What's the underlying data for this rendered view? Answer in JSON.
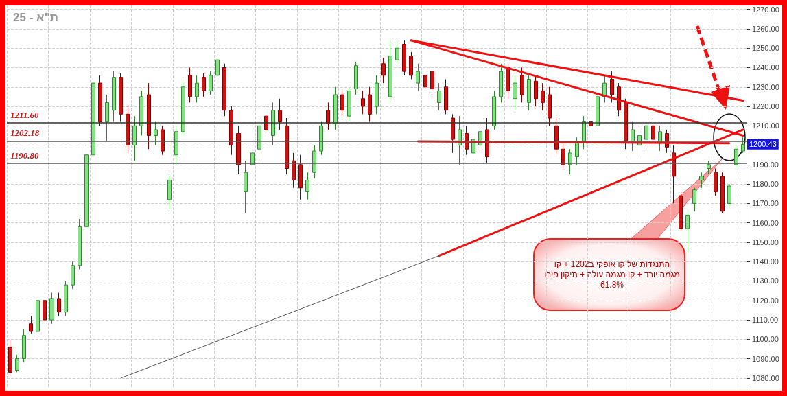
{
  "chart_data": {
    "type": "candlestick",
    "title": "ת\"א - 25",
    "categories": [
      null,
      null,
      null,
      null,
      null,
      null,
      null,
      null,
      null,
      null,
      null,
      null,
      null,
      null,
      null,
      null,
      null,
      null,
      null,
      null,
      null,
      null,
      null,
      null,
      null,
      null,
      null,
      null,
      null,
      null,
      null,
      null,
      null,
      null,
      null,
      null,
      null,
      null,
      null,
      null,
      null,
      null,
      null,
      null,
      null,
      null,
      null,
      null,
      null,
      null,
      null,
      null,
      null,
      null,
      null,
      null,
      null,
      null,
      null,
      null,
      null,
      null,
      null,
      null,
      null,
      null,
      null,
      null,
      null,
      null,
      null,
      null,
      null,
      null,
      null,
      null,
      null,
      null,
      null,
      null,
      null,
      null,
      null,
      null,
      null,
      null,
      null,
      null,
      null,
      null,
      null,
      null,
      null,
      null,
      null,
      null,
      null,
      null,
      null,
      null,
      null,
      null,
      null,
      null,
      null,
      null,
      null
    ],
    "ohlc": [
      [
        1096,
        1100,
        1081,
        1083
      ],
      [
        1084,
        1092,
        1083,
        1090
      ],
      [
        1090,
        1105,
        1088,
        1102
      ],
      [
        1108,
        1112,
        1103,
        1104
      ],
      [
        1104,
        1122,
        1102,
        1120
      ],
      [
        1120,
        1123,
        1108,
        1110
      ],
      [
        1110,
        1124,
        1108,
        1121
      ],
      [
        1121,
        1124,
        1112,
        1114
      ],
      [
        1114,
        1130,
        1112,
        1128
      ],
      [
        1128,
        1140,
        1126,
        1138
      ],
      [
        1138,
        1162,
        1136,
        1158
      ],
      [
        1158,
        1200,
        1156,
        1195
      ],
      [
        1195,
        1238,
        1190,
        1232
      ],
      [
        1232,
        1236,
        1210,
        1212
      ],
      [
        1212,
        1226,
        1202,
        1222
      ],
      [
        1218,
        1238,
        1212,
        1235
      ],
      [
        1235,
        1237,
        1212,
        1216
      ],
      [
        1216,
        1220,
        1196,
        1200
      ],
      [
        1200,
        1215,
        1192,
        1210
      ],
      [
        1210,
        1228,
        1205,
        1225
      ],
      [
        1226,
        1232,
        1198,
        1205
      ],
      [
        1205,
        1212,
        1200,
        1208
      ],
      [
        1208,
        1210,
        1195,
        1197
      ],
      [
        1172,
        1185,
        1167,
        1182
      ],
      [
        1195,
        1210,
        1190,
        1207
      ],
      [
        1207,
        1233,
        1205,
        1230
      ],
      [
        1236,
        1240,
        1222,
        1225
      ],
      [
        1225,
        1236,
        1222,
        1232
      ],
      [
        1235,
        1237,
        1225,
        1228
      ],
      [
        1228,
        1238,
        1226,
        1236
      ],
      [
        1236,
        1248,
        1234,
        1244
      ],
      [
        1240,
        1242,
        1215,
        1218
      ],
      [
        1218,
        1220,
        1195,
        1200
      ],
      [
        1206,
        1210,
        1185,
        1190
      ],
      [
        1176,
        1192,
        1165,
        1186
      ],
      [
        1190,
        1200,
        1186,
        1196
      ],
      [
        1198,
        1215,
        1192,
        1210
      ],
      [
        1215,
        1220,
        1205,
        1208
      ],
      [
        1205,
        1222,
        1200,
        1218
      ],
      [
        1218,
        1224,
        1208,
        1212
      ],
      [
        1210,
        1214,
        1185,
        1188
      ],
      [
        1192,
        1196,
        1178,
        1182
      ],
      [
        1190,
        1195,
        1172,
        1178
      ],
      [
        1176,
        1186,
        1172,
        1182
      ],
      [
        1186,
        1200,
        1183,
        1197
      ],
      [
        1197,
        1212,
        1195,
        1210
      ],
      [
        1218,
        1222,
        1208,
        1211
      ],
      [
        1211,
        1230,
        1208,
        1226
      ],
      [
        1226,
        1228,
        1215,
        1218
      ],
      [
        1215,
        1230,
        1212,
        1228
      ],
      [
        1229,
        1243,
        1226,
        1241
      ],
      [
        1224,
        1228,
        1216,
        1220
      ],
      [
        1226,
        1230,
        1212,
        1216
      ],
      [
        1220,
        1236,
        1216,
        1232
      ],
      [
        1242,
        1245,
        1232,
        1236
      ],
      [
        1225,
        1254,
        1222,
        1246
      ],
      [
        1244,
        1254,
        1242,
        1250
      ],
      [
        1252,
        1254,
        1236,
        1238
      ],
      [
        1246,
        1248,
        1234,
        1236
      ],
      [
        1232,
        1242,
        1228,
        1238
      ],
      [
        1236,
        1238,
        1228,
        1230
      ],
      [
        1238,
        1240,
        1226,
        1229
      ],
      [
        1222,
        1232,
        1218,
        1228
      ],
      [
        1230,
        1234,
        1216,
        1218
      ],
      [
        1214,
        1216,
        1196,
        1203
      ],
      [
        1200,
        1215,
        1190,
        1208
      ],
      [
        1206,
        1210,
        1195,
        1198
      ],
      [
        1196,
        1206,
        1192,
        1203
      ],
      [
        1200,
        1210,
        1196,
        1207
      ],
      [
        1208,
        1214,
        1191,
        1194
      ],
      [
        1210,
        1228,
        1208,
        1225
      ],
      [
        1225,
        1242,
        1222,
        1238
      ],
      [
        1240,
        1242,
        1224,
        1228
      ],
      [
        1224,
        1236,
        1218,
        1232
      ],
      [
        1236,
        1240,
        1222,
        1226
      ],
      [
        1222,
        1236,
        1218,
        1234
      ],
      [
        1233,
        1236,
        1220,
        1224
      ],
      [
        1228,
        1232,
        1218,
        1222
      ],
      [
        1226,
        1230,
        1210,
        1214
      ],
      [
        1210,
        1214,
        1195,
        1198
      ],
      [
        1198,
        1202,
        1188,
        1190
      ],
      [
        1190,
        1198,
        1185,
        1196
      ],
      [
        1194,
        1204,
        1190,
        1202
      ],
      [
        1202,
        1215,
        1198,
        1212
      ],
      [
        1212,
        1218,
        1205,
        1210
      ],
      [
        1210,
        1228,
        1208,
        1225
      ],
      [
        1225,
        1236,
        1222,
        1232
      ],
      [
        1234,
        1238,
        1222,
        1226
      ],
      [
        1230,
        1232,
        1215,
        1218
      ],
      [
        1222,
        1224,
        1198,
        1202
      ],
      [
        1202,
        1212,
        1197,
        1208
      ],
      [
        1200,
        1208,
        1195,
        1205
      ],
      [
        1203,
        1212,
        1198,
        1210
      ],
      [
        1210,
        1214,
        1200,
        1203
      ],
      [
        1201,
        1210,
        1197,
        1207
      ],
      [
        1206,
        1208,
        1196,
        1199
      ],
      [
        1196,
        1200,
        1170,
        1184
      ],
      [
        1174,
        1176,
        1156,
        1157
      ],
      [
        1157,
        1166,
        1145,
        1164
      ],
      [
        1170,
        1178,
        1166,
        1177
      ],
      [
        1182,
        1186,
        1178,
        1184
      ],
      [
        1188,
        1192,
        1185,
        1190
      ],
      [
        1186,
        1188,
        1174,
        1176
      ],
      [
        1184,
        1186,
        1165,
        1166
      ],
      [
        1170,
        1180,
        1168,
        1179
      ],
      [
        1190,
        1200,
        1188,
        1198
      ],
      [
        1197,
        1204,
        1196,
        1200.43
      ]
    ],
    "series": [
      {
        "type": "line",
        "color": "#ee1111",
        "values": [
          null,
          null,
          null,
          null,
          null,
          null,
          null,
          null,
          null,
          null,
          null,
          null,
          null,
          null,
          null,
          null,
          null,
          null,
          null,
          null,
          null,
          null,
          null,
          null,
          null,
          null,
          null,
          null,
          null,
          null,
          null,
          null,
          null,
          null,
          null,
          null,
          null,
          null,
          null,
          null,
          null,
          null,
          null,
          null,
          null,
          null,
          null,
          null,
          null,
          null,
          null,
          null,
          null,
          null,
          null,
          null,
          null,
          null,
          1254,
          null,
          null,
          null,
          null,
          null,
          null,
          null,
          null,
          null,
          null,
          null,
          null,
          null,
          null,
          null,
          null,
          null,
          null,
          null,
          null,
          null,
          null,
          null,
          null,
          null,
          null,
          null,
          null,
          null,
          null,
          null,
          null,
          null,
          null,
          null,
          null,
          null,
          null,
          null,
          null,
          null,
          null,
          null,
          null,
          null,
          null,
          null,
          1223
        ]
      },
      {
        "type": "line",
        "color": "#ee1111",
        "values": [
          null,
          null,
          null,
          null,
          null,
          null,
          null,
          null,
          null,
          null,
          null,
          null,
          null,
          null,
          null,
          null,
          null,
          null,
          null,
          null,
          null,
          null,
          null,
          null,
          null,
          null,
          null,
          null,
          null,
          null,
          null,
          null,
          null,
          null,
          null,
          null,
          null,
          null,
          null,
          null,
          null,
          null,
          null,
          null,
          null,
          null,
          null,
          null,
          null,
          null,
          null,
          null,
          null,
          null,
          null,
          null,
          null,
          null,
          1254,
          null,
          null,
          null,
          null,
          null,
          null,
          null,
          null,
          null,
          null,
          null,
          null,
          null,
          null,
          null,
          null,
          null,
          null,
          null,
          null,
          null,
          null,
          null,
          null,
          null,
          null,
          null,
          null,
          null,
          null,
          null,
          null,
          null,
          null,
          null,
          null,
          null,
          null,
          null,
          null,
          null,
          null,
          null,
          null,
          null,
          null,
          null,
          1205
        ]
      },
      {
        "type": "line",
        "color": "#ee1111",
        "values": [
          null,
          null,
          null,
          null,
          null,
          null,
          null,
          null,
          null,
          null,
          null,
          null,
          null,
          null,
          null,
          null,
          null,
          null,
          null,
          null,
          null,
          null,
          null,
          null,
          null,
          null,
          null,
          null,
          null,
          null,
          null,
          null,
          null,
          null,
          null,
          null,
          null,
          null,
          null,
          null,
          null,
          null,
          null,
          null,
          null,
          null,
          null,
          null,
          null,
          null,
          null,
          null,
          null,
          null,
          null,
          null,
          null,
          null,
          null,
          1202,
          null,
          null,
          null,
          null,
          null,
          null,
          null,
          null,
          null,
          null,
          null,
          null,
          null,
          null,
          null,
          null,
          null,
          null,
          null,
          null,
          null,
          null,
          null,
          null,
          null,
          null,
          null,
          null,
          null,
          null,
          null,
          null,
          null,
          null,
          null,
          null,
          null,
          null,
          null,
          null,
          null,
          null,
          null,
          null,
          1201,
          null,
          null
        ]
      },
      {
        "type": "line",
        "color": "#ee1111",
        "values": [
          null,
          null,
          null,
          null,
          null,
          null,
          null,
          null,
          null,
          null,
          null,
          null,
          null,
          null,
          null,
          null,
          null,
          null,
          null,
          null,
          null,
          null,
          null,
          null,
          null,
          null,
          null,
          null,
          null,
          null,
          null,
          null,
          null,
          null,
          null,
          null,
          null,
          null,
          null,
          null,
          null,
          null,
          null,
          null,
          null,
          null,
          null,
          null,
          null,
          null,
          null,
          null,
          null,
          null,
          null,
          null,
          null,
          null,
          null,
          null,
          null,
          null,
          1143,
          null,
          null,
          null,
          null,
          null,
          null,
          null,
          null,
          null,
          null,
          null,
          null,
          null,
          null,
          null,
          null,
          null,
          null,
          null,
          null,
          null,
          null,
          null,
          null,
          null,
          null,
          null,
          null,
          null,
          null,
          null,
          null,
          null,
          null,
          null,
          null,
          null,
          null,
          null,
          null,
          null,
          null,
          null,
          1208
        ]
      },
      {
        "type": "line",
        "color": "#555555",
        "values": [
          null,
          null,
          null,
          null,
          null,
          null,
          null,
          null,
          null,
          null,
          null,
          null,
          null,
          null,
          null,
          null,
          1080,
          null,
          null,
          null,
          null,
          null,
          null,
          null,
          null,
          null,
          null,
          null,
          null,
          null,
          null,
          null,
          null,
          null,
          null,
          null,
          null,
          null,
          null,
          null,
          null,
          null,
          null,
          null,
          null,
          null,
          null,
          null,
          null,
          null,
          null,
          null,
          null,
          null,
          null,
          null,
          null,
          null,
          null,
          null,
          null,
          null,
          1143,
          null,
          null,
          null,
          null,
          null,
          null,
          null,
          null,
          null,
          null,
          null,
          null,
          null,
          null,
          null,
          null,
          null,
          null,
          null,
          null,
          null,
          null,
          null,
          null,
          null,
          null,
          null,
          null,
          null,
          null,
          null,
          null,
          null,
          null,
          null,
          null,
          null,
          null,
          null,
          null,
          null,
          null,
          null,
          null
        ]
      }
    ],
    "ylim": [
      1075,
      1272
    ],
    "yticks": [
      {
        "value": 1080,
        "label": "1080.00"
      },
      {
        "value": 1090,
        "label": "1090.00"
      },
      {
        "value": 1100,
        "label": "1100.00"
      },
      {
        "value": 1110,
        "label": "1110.00"
      },
      {
        "value": 1120,
        "label": "1120.00"
      },
      {
        "value": 1130,
        "label": "1130.00"
      },
      {
        "value": 1140,
        "label": "1140.00"
      },
      {
        "value": 1150,
        "label": "1150.00"
      },
      {
        "value": 1160,
        "label": "1160.00"
      },
      {
        "value": 1170,
        "label": "1170.00"
      },
      {
        "value": 1180,
        "label": "1180.00"
      },
      {
        "value": 1190,
        "label": "1190.00"
      },
      {
        "value": 1200,
        "label": null
      },
      {
        "value": 1210,
        "label": "1210.00"
      },
      {
        "value": 1220,
        "label": "1220.00"
      },
      {
        "value": 1230,
        "label": "1230.00"
      },
      {
        "value": 1240,
        "label": "1240.00"
      },
      {
        "value": 1250,
        "label": "1250.00"
      },
      {
        "value": 1260,
        "label": "1260.00"
      },
      {
        "value": 1270,
        "label": "1270.00"
      }
    ],
    "ref_lines": [
      {
        "axis": "y",
        "value": 1211.6,
        "label": "1211.60",
        "color": "#333333"
      },
      {
        "axis": "y",
        "value": 1202.18,
        "label": "1202.18",
        "color": "#555555"
      },
      {
        "axis": "y",
        "value": 1190.8,
        "label": "1190.80",
        "color": "#555555"
      }
    ],
    "annotations": [
      "1200.43",
      "התנגדות של קו אופקי  ב1202 + קו מגמה יורד + קו מגמה עולה + תיקון פיבו 61.8%"
    ],
    "grid": true,
    "tick_labels": "y"
  }
}
